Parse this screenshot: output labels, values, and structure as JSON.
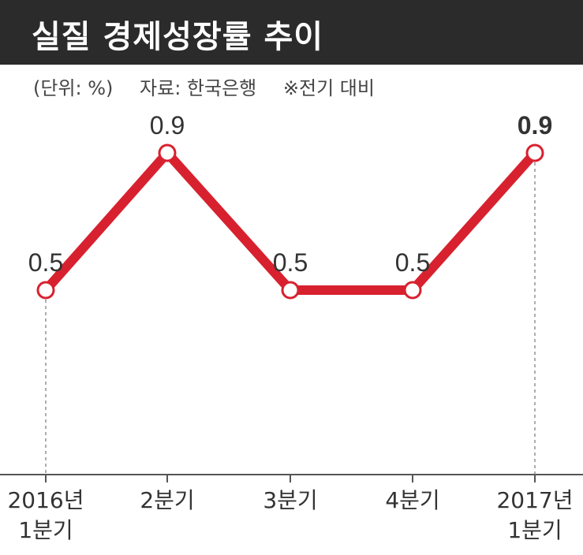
{
  "header": {
    "title": "실질 경제성장률 추이",
    "unit_note": "(단위: %)",
    "source_note": "자료: 한국은행",
    "basis_note": "※전기 대비"
  },
  "colors": {
    "title_bg": "#2b2b2b",
    "line": "#d8212f",
    "marker_fill": "#ffffff",
    "axis": "#555555",
    "text": "#333333"
  },
  "chart_data": {
    "type": "line",
    "categories": [
      "2016년\n1분기",
      "2분기",
      "3분기",
      "4분기",
      "2017년\n1분기"
    ],
    "values": [
      0.5,
      0.9,
      0.5,
      0.5,
      0.9
    ],
    "value_labels": [
      "0.5",
      "0.9",
      "0.5",
      "0.5",
      "0.9"
    ],
    "highlight_index": 4,
    "title": "실질 경제성장률 추이",
    "unit": "%",
    "grid": false,
    "legend": "none"
  }
}
